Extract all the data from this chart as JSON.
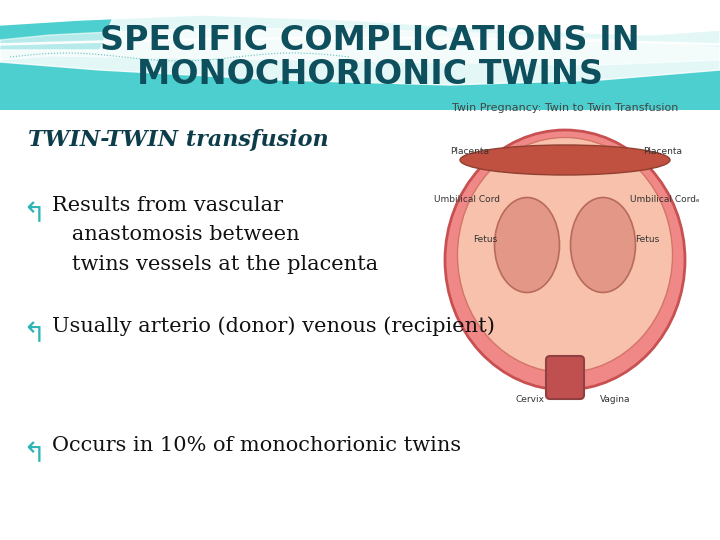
{
  "title_line1": "SPECIFIC COMPLICATIONS IN",
  "title_line2": "MONOCHORIONIC TWINS",
  "title_color": "#0d4f5c",
  "title_fontsize": 24,
  "subtitle": "TWIN-TWIN transfusion",
  "subtitle_color": "#0d3d4a",
  "subtitle_fontsize": 16,
  "bullet_color": "#2db5b5",
  "bullet_fontsize": 20,
  "bullets": [
    "Results from vascular\n   anastomosis between\n   twins vessels at the placenta",
    "Usually arterio (donor) venous (recipient)",
    "Occurs in 10% of monochorionic twins"
  ],
  "text_color": "#111111",
  "text_fontsize": 15,
  "bg_color": "#eef4f6",
  "header_teal": "#4dcfcf",
  "header_teal2": "#70d8d8",
  "image_caption": "Twin Pregnancy: Twin to Twin Transfusion",
  "image_caption_color": "#444444",
  "image_caption_fontsize": 8
}
